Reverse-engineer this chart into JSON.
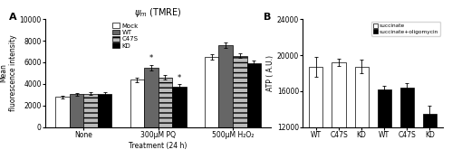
{
  "panel_A": {
    "title": "$\\psi_m$ (TMRE)",
    "ylabel": "Mean\nfluorescence intensity",
    "xlabel": "Treatment (24 h)",
    "groups": [
      "None",
      "300μM PQ",
      "500μM H₂O₂"
    ],
    "series": [
      "Mock",
      "WT",
      "C47S",
      "KD"
    ],
    "bar_colors": [
      "white",
      "#666666",
      "#bbbbbb",
      "black"
    ],
    "bar_hatches": [
      "",
      "",
      "---",
      ""
    ],
    "values": [
      [
        2800,
        3050,
        3100,
        3100
      ],
      [
        4400,
        5500,
        4600,
        3750
      ],
      [
        6500,
        7600,
        6600,
        5950
      ]
    ],
    "errors": [
      [
        130,
        130,
        130,
        130
      ],
      [
        220,
        280,
        220,
        220
      ],
      [
        230,
        250,
        200,
        220
      ]
    ],
    "asterisks_idx": [
      [
        1,
        3
      ]
    ],
    "asterisks_group": 1,
    "ylim": [
      0,
      10000
    ],
    "yticks": [
      0,
      2000,
      4000,
      6000,
      8000,
      10000
    ]
  },
  "panel_B": {
    "ylabel": "ATP ( A.U.)",
    "xlabel": "",
    "groups": [
      "WT",
      "C47S",
      "KD",
      "WT",
      "C47S",
      "KD"
    ],
    "bar_colors": [
      "white",
      "white",
      "white",
      "black",
      "black",
      "black"
    ],
    "values": [
      18700,
      19200,
      18700,
      16200,
      16400,
      13500
    ],
    "errors": [
      1100,
      450,
      750,
      400,
      500,
      900
    ],
    "ylim": [
      12000,
      24000
    ],
    "yticks": [
      12000,
      16000,
      20000,
      24000
    ],
    "legend_labels": [
      "succinate",
      "succinate+oligomycin"
    ]
  }
}
